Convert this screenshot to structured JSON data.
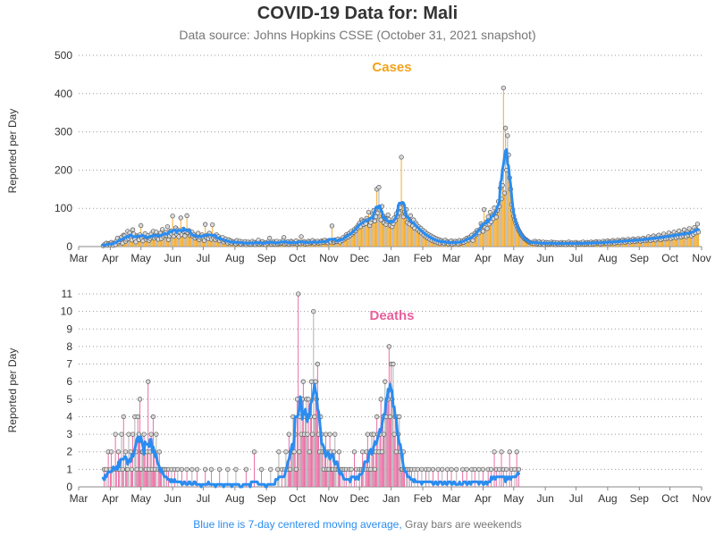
{
  "title": "COVID-19 Data for: Mali",
  "subtitle": "Data source: Johns Hopkins CSSE (October 31, 2021 snapshot)",
  "footer": {
    "moving_average_note": "Blue line is 7-day centered moving average,",
    "weekend_note": "Gray bars are weekends"
  },
  "colors": {
    "cases": "#f2a31b",
    "deaths": "#e8609c",
    "moving_average": "#2a8cf0",
    "weekend": "#a9a9a9"
  },
  "chart_data": [
    {
      "type": "bar",
      "title": "Cases",
      "ylabel": "Reported per Day",
      "xlabel": "",
      "x_tick_labels": [
        "Mar",
        "Apr",
        "May",
        "Jun",
        "Jul",
        "Aug",
        "Sep",
        "Oct",
        "Nov",
        "Dec",
        "Jan",
        "Feb",
        "Mar",
        "Apr",
        "May",
        "Jun",
        "Jul",
        "Aug",
        "Sep",
        "Oct",
        "Nov"
      ],
      "x_range": [
        "2020-03-01",
        "2021-11-01"
      ],
      "ylim": [
        0,
        500
      ],
      "y_ticks": [
        0,
        100,
        200,
        300,
        400,
        500
      ],
      "grid": "horizontal dotted",
      "series": [
        {
          "name": "Cases",
          "style": "bar+marker",
          "values_start": "2020-03-25",
          "values": [
            2,
            5,
            0,
            9,
            3,
            8,
            6,
            4,
            11,
            7,
            3,
            9,
            5,
            15,
            22,
            10,
            13,
            18,
            25,
            9,
            30,
            28,
            14,
            19,
            40,
            21,
            36,
            25,
            17,
            44,
            33,
            20,
            12,
            28,
            26,
            18,
            31,
            55,
            22,
            15,
            27,
            34,
            19,
            24,
            29,
            16,
            21,
            33,
            25,
            40,
            22,
            27,
            38,
            24,
            19,
            29,
            35,
            21,
            45,
            26,
            30,
            37,
            29,
            52,
            18,
            28,
            41,
            33,
            80,
            27,
            36,
            49,
            32,
            44,
            26,
            38,
            75,
            31,
            45,
            39,
            28,
            40,
            81,
            36,
            42,
            29,
            33,
            38,
            27,
            31,
            22,
            28,
            25,
            35,
            18,
            24,
            29,
            31,
            20,
            16,
            58,
            24,
            30,
            21,
            35,
            27,
            19,
            57,
            23,
            28,
            18,
            31,
            21,
            26,
            15,
            22,
            19,
            24,
            12,
            17,
            20,
            14,
            9,
            18,
            11,
            15,
            8,
            13,
            10,
            12,
            7,
            16,
            9,
            11,
            14,
            6,
            12,
            8,
            10,
            13,
            5,
            9,
            12,
            7,
            10,
            6,
            14,
            8,
            11,
            5,
            9,
            12,
            17,
            6,
            10,
            8,
            13,
            7,
            9,
            5,
            11,
            8,
            12,
            22,
            9,
            6,
            10,
            13,
            7,
            11,
            14,
            6,
            9,
            12,
            8,
            10,
            15,
            24,
            7,
            11,
            9,
            13,
            6,
            10,
            14,
            12,
            8,
            11,
            9,
            15,
            7,
            10,
            12,
            8,
            26,
            11,
            9,
            13,
            7,
            10,
            8,
            14,
            12,
            9,
            11,
            16,
            10,
            8,
            13,
            11,
            14,
            9,
            12,
            10,
            15,
            13,
            11,
            17,
            12,
            14,
            10,
            16,
            13,
            12,
            54,
            15,
            11,
            14,
            17,
            13,
            20,
            15,
            12,
            18,
            16,
            24,
            19,
            22,
            31,
            27,
            25,
            35,
            29,
            40,
            33,
            37,
            45,
            41,
            50,
            48,
            56,
            61,
            52,
            70,
            65,
            58,
            66,
            60,
            74,
            69,
            90,
            55,
            63,
            72,
            85,
            94,
            67,
            78,
            150,
            88,
            155,
            96,
            70,
            105,
            81,
            62,
            74,
            58,
            66,
            83,
            71,
            55,
            64,
            52,
            60,
            75,
            68,
            86,
            79,
            94,
            88,
            102,
            234,
            113,
            78,
            91,
            85,
            97,
            63,
            72,
            59,
            81,
            66,
            54,
            70,
            48,
            62,
            57,
            44,
            52,
            39,
            48,
            35,
            43,
            30,
            39,
            26,
            34,
            22,
            31,
            19,
            28,
            16,
            25,
            14,
            22,
            12,
            20,
            10,
            18,
            9,
            16,
            11,
            14,
            8,
            17,
            10,
            13,
            7,
            12,
            9,
            15,
            6,
            11,
            8,
            14,
            10,
            13,
            7,
            16,
            9,
            12,
            15,
            11,
            18,
            14,
            22,
            19,
            17,
            25,
            21,
            30,
            16,
            26,
            35,
            31,
            42,
            38,
            36,
            45,
            60,
            55,
            40,
            97,
            50,
            64,
            47,
            78,
            59,
            90,
            65,
            81,
            73,
            101,
            88,
            77,
            95,
            118,
            105,
            153,
            125,
            160,
            415,
            140,
            310,
            200,
            290,
            240,
            180,
            150,
            110,
            95,
            80,
            70,
            62,
            55,
            48,
            42,
            38,
            33,
            29,
            26,
            22,
            20,
            18,
            16,
            14,
            12,
            11,
            10,
            9,
            12,
            8,
            14,
            11,
            7,
            9,
            13,
            6,
            10,
            8,
            12,
            5,
            9,
            11,
            7,
            10,
            6,
            8,
            12,
            9,
            7,
            11,
            5,
            8,
            10,
            6,
            9,
            7,
            11,
            8,
            6,
            10,
            5,
            9,
            7,
            12,
            8,
            6,
            10,
            7,
            9,
            5,
            11,
            8,
            6,
            9,
            7,
            10,
            8,
            12,
            6,
            9,
            7,
            11,
            8,
            10,
            6,
            12,
            9,
            7,
            11,
            8,
            13,
            10,
            9,
            12,
            7,
            11,
            8,
            14,
            10,
            12,
            9,
            15,
            11,
            8,
            13,
            10,
            16,
            12,
            9,
            14,
            11,
            17,
            13,
            10,
            15,
            12,
            18,
            14,
            11,
            16,
            13,
            19,
            15,
            12,
            17,
            14,
            20,
            16,
            13,
            18,
            15,
            21,
            17,
            14,
            19,
            16,
            22,
            18,
            15,
            20,
            17,
            26,
            19,
            16,
            24,
            18,
            28,
            21,
            17,
            25,
            20,
            30,
            22,
            18,
            27,
            21,
            33,
            24,
            20,
            29,
            22,
            36,
            26,
            21,
            31,
            24,
            38,
            28,
            23,
            34,
            26,
            41,
            30,
            25,
            36,
            28,
            44,
            32,
            26,
            38,
            30,
            47,
            34,
            28,
            41,
            32,
            50,
            36,
            44,
            59,
            38
          ]
        }
      ]
    },
    {
      "type": "bar",
      "title": "Deaths",
      "ylabel": "Reported per Day",
      "xlabel": "",
      "x_tick_labels": [
        "Mar",
        "Apr",
        "May",
        "Jun",
        "Jul",
        "Aug",
        "Sep",
        "Oct",
        "Nov",
        "Dec",
        "Jan",
        "Feb",
        "Mar",
        "Apr",
        "May",
        "Jun",
        "Jul",
        "Aug",
        "Sep",
        "Oct",
        "Nov"
      ],
      "x_range": [
        "2020-03-01",
        "2021-11-01"
      ],
      "ylim": [
        0,
        11
      ],
      "y_ticks": [
        0,
        1,
        2,
        3,
        4,
        5,
        6,
        7,
        8,
        9,
        10,
        11
      ],
      "grid": "horizontal dotted",
      "series": [
        {
          "name": "Deaths",
          "style": "bar+marker",
          "values_start": "2020-03-25",
          "values": [
            0,
            1,
            0,
            1,
            0,
            2,
            0,
            1,
            2,
            0,
            1,
            0,
            3,
            1,
            0,
            2,
            1,
            0,
            3,
            1,
            4,
            0,
            2,
            1,
            1,
            3,
            0,
            2,
            1,
            3,
            0,
            4,
            2,
            1,
            4,
            3,
            5,
            1,
            2,
            2,
            3,
            2,
            1,
            2,
            6,
            1,
            2,
            3,
            1,
            4,
            2,
            1,
            3,
            0,
            1,
            2,
            1,
            1,
            0,
            1,
            1,
            0,
            1,
            0,
            1,
            0,
            0,
            1,
            0,
            0,
            1,
            0,
            0,
            1,
            0,
            0,
            0,
            1,
            0,
            0,
            0,
            0,
            1,
            0,
            0,
            0,
            0,
            1,
            0,
            0,
            0,
            0,
            1,
            0,
            0,
            0,
            0,
            0,
            0,
            0,
            1,
            0,
            0,
            0,
            0,
            0,
            1,
            0,
            0,
            0,
            0,
            0,
            0,
            0,
            1,
            0,
            0,
            0,
            0,
            0,
            0,
            0,
            1,
            0,
            0,
            0,
            0,
            0,
            0,
            0,
            1,
            0,
            0,
            0,
            0,
            0,
            0,
            0,
            0,
            0,
            1,
            0,
            0,
            0,
            0,
            0,
            0,
            0,
            2,
            0,
            0,
            0,
            0,
            0,
            0,
            1,
            0,
            0,
            0,
            0,
            0,
            0,
            0,
            0,
            1,
            0,
            0,
            0,
            0,
            0,
            0,
            1,
            2,
            0,
            0,
            1,
            0,
            0,
            1,
            2,
            0,
            1,
            3,
            1,
            2,
            2,
            4,
            2,
            3,
            1,
            5,
            11,
            2,
            4,
            3,
            5,
            6,
            3,
            4,
            5,
            3,
            5,
            2,
            4,
            6,
            3,
            10,
            4,
            6,
            5,
            7,
            3,
            2,
            4,
            3,
            2,
            1,
            2,
            3,
            1,
            2,
            1,
            3,
            2,
            1,
            1,
            2,
            3,
            1,
            0,
            1,
            2,
            1,
            0,
            1,
            0,
            1,
            0,
            1,
            0,
            0,
            1,
            0,
            1,
            0,
            0,
            2,
            0,
            1,
            0,
            0,
            1,
            0,
            1,
            2,
            1,
            0,
            1,
            2,
            3,
            1,
            2,
            1,
            3,
            2,
            3,
            1,
            2,
            4,
            3,
            2,
            3,
            5,
            2,
            4,
            3,
            6,
            4,
            5,
            5,
            8,
            4,
            7,
            5,
            7,
            3,
            4,
            2,
            4,
            3,
            4,
            2,
            1,
            1,
            2,
            1,
            0,
            1,
            1,
            0,
            1,
            0,
            1,
            0,
            0,
            1,
            0,
            0,
            1,
            0,
            0,
            0,
            1,
            0,
            0,
            0,
            1,
            0,
            0,
            1,
            0,
            0,
            0,
            1,
            0,
            0,
            0,
            0,
            1,
            0,
            0,
            0,
            1,
            0,
            0,
            0,
            0,
            1,
            0,
            0,
            0,
            1,
            0,
            0,
            0,
            0,
            1,
            0,
            0,
            0,
            0,
            0,
            1,
            0,
            0,
            0,
            1,
            0,
            0,
            0,
            0,
            1,
            0,
            0,
            1,
            0,
            0,
            0,
            1,
            0,
            0,
            0,
            1,
            0,
            0,
            0,
            0,
            1,
            0,
            0,
            1,
            0,
            0,
            2,
            0,
            1,
            0,
            0,
            1,
            0,
            2,
            0,
            1,
            0,
            0,
            1,
            0,
            0,
            2,
            0,
            1,
            0,
            0,
            1,
            0,
            2,
            0,
            1
          ]
        }
      ]
    }
  ]
}
